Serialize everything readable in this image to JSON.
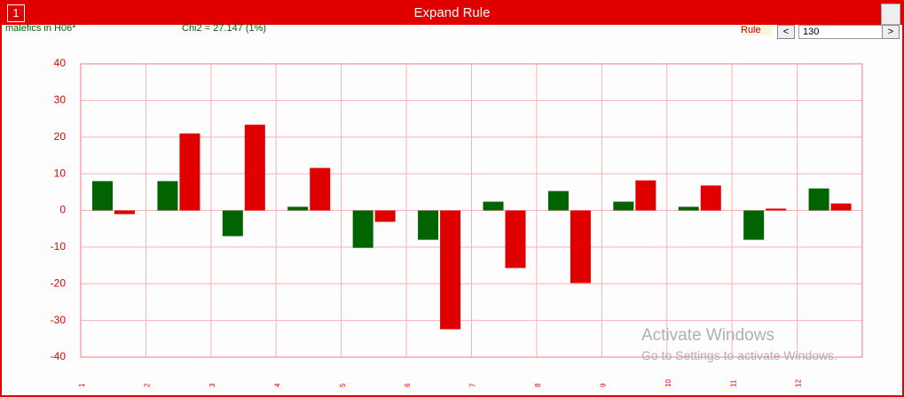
{
  "window": {
    "title": "Expand Rule",
    "tab_number": "1",
    "rule_label": "Rule",
    "rule_value": "130",
    "prev_button": "<",
    "next_button": ">",
    "watermark_title": "Activate Windows",
    "watermark_text": "Go to Settings to activate Windows."
  },
  "chart_data": {
    "type": "bar",
    "title": "malefics in H06*",
    "subtitle": "Chi2 = 27.147 (1%)",
    "categories": [
      "1",
      "2",
      "3",
      "4",
      "5",
      "6",
      "7",
      "8",
      "9",
      "10",
      "11",
      "12"
    ],
    "series": [
      {
        "color": "#006400",
        "values": [
          8,
          8,
          -7,
          1,
          -10.2,
          -8,
          2.4,
          5.3,
          2.4,
          1,
          -8,
          6
        ]
      },
      {
        "color": "#e00000",
        "values": [
          -1,
          21,
          23.4,
          11.6,
          -3.1,
          -32.4,
          -15.7,
          -19.8,
          8.2,
          6.8,
          0.5,
          1.9
        ]
      }
    ],
    "ylim": [
      -40,
      40
    ],
    "yticks": [
      40,
      30,
      20,
      10,
      0,
      -10,
      -20,
      -30,
      -40
    ],
    "grid": true
  }
}
